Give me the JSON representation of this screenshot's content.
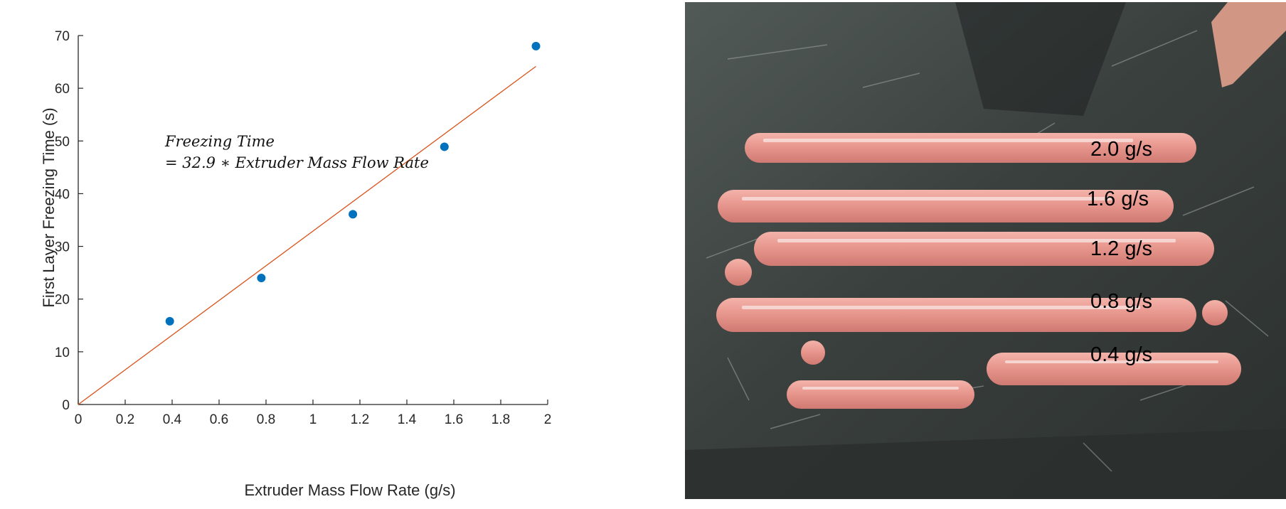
{
  "chart_data": {
    "type": "scatter",
    "xlabel": "Extruder Mass Flow Rate (g/s)",
    "ylabel": "First Layer Freezing Time (s)",
    "xlim": [
      0,
      2
    ],
    "ylim": [
      0,
      70
    ],
    "x_ticks": [
      "0",
      "0.2",
      "0.4",
      "0.6",
      "0.8",
      "1",
      "1.2",
      "1.4",
      "1.6",
      "1.8",
      "2"
    ],
    "y_ticks": [
      "0",
      "10",
      "20",
      "30",
      "40",
      "50",
      "60",
      "70"
    ],
    "points": [
      {
        "x": 0.39,
        "y": 15.8
      },
      {
        "x": 0.78,
        "y": 24.0
      },
      {
        "x": 1.17,
        "y": 36.1
      },
      {
        "x": 1.56,
        "y": 48.9
      },
      {
        "x": 1.95,
        "y": 68.0
      }
    ],
    "fit_line": {
      "slope": 32.9,
      "x_range": [
        0,
        1.95
      ]
    },
    "annotation": {
      "line1": "Freezing Time",
      "line2": "= 32.9 ∗ Extruder Mass Flow Rate"
    },
    "grid": false,
    "colors": {
      "points": "#0072bd",
      "fit": "#d95319",
      "axis": "#262626"
    }
  },
  "photo": {
    "strand_labels": [
      "2.0 g/s",
      "1.6 g/s",
      "1.2 g/s",
      "0.8 g/s",
      "0.4 g/s"
    ],
    "colors": {
      "tray": "#3c4240",
      "strand": "#e6978f",
      "label": "#000000"
    }
  }
}
